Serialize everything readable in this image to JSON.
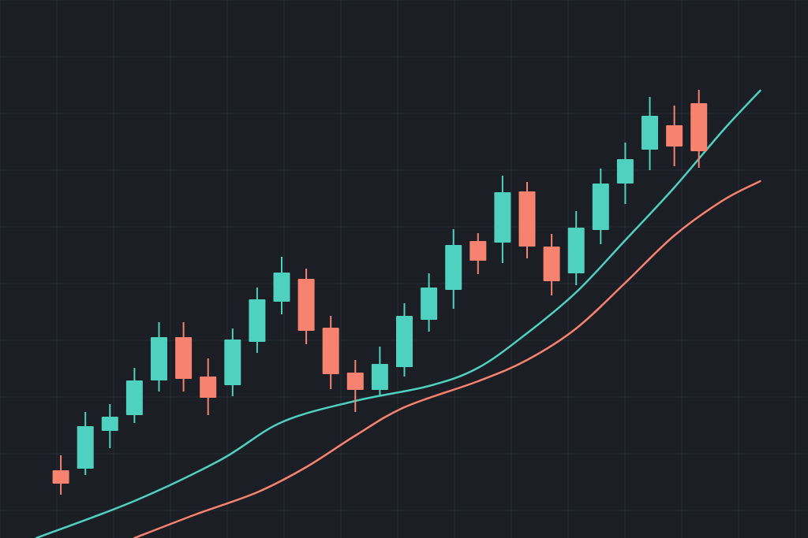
{
  "colors": {
    "background": "#1b1e25",
    "grid": "#262a33",
    "up": "#4fd1bf",
    "down": "#f6826f",
    "ma_fast": "#4fd1bf",
    "ma_slow": "#f6826f"
  },
  "chart_data": {
    "type": "candlestick",
    "title": "",
    "xlabel": "",
    "ylabel": "",
    "grid": true,
    "ylim": [
      0,
      683
    ],
    "candles": [
      {
        "x": 1,
        "open": 86,
        "close": 69,
        "high": 105,
        "low": 55
      },
      {
        "x": 2,
        "open": 88,
        "close": 142,
        "high": 160,
        "low": 80
      },
      {
        "x": 3,
        "open": 136,
        "close": 154,
        "high": 170,
        "low": 114
      },
      {
        "x": 4,
        "open": 156,
        "close": 200,
        "high": 216,
        "low": 146
      },
      {
        "x": 5,
        "open": 200,
        "close": 255,
        "high": 274,
        "low": 186
      },
      {
        "x": 6,
        "open": 255,
        "close": 202,
        "high": 274,
        "low": 186
      },
      {
        "x": 7,
        "open": 205,
        "close": 178,
        "high": 228,
        "low": 156
      },
      {
        "x": 8,
        "open": 194,
        "close": 252,
        "high": 266,
        "low": 180
      },
      {
        "x": 9,
        "open": 249,
        "close": 303,
        "high": 318,
        "low": 235
      },
      {
        "x": 10,
        "open": 300,
        "close": 337,
        "high": 357,
        "low": 284
      },
      {
        "x": 11,
        "open": 329,
        "close": 263,
        "high": 342,
        "low": 246
      },
      {
        "x": 12,
        "open": 267,
        "close": 208,
        "high": 282,
        "low": 189
      },
      {
        "x": 13,
        "open": 210,
        "close": 188,
        "high": 226,
        "low": 160
      },
      {
        "x": 14,
        "open": 188,
        "close": 221,
        "high": 243,
        "low": 180
      },
      {
        "x": 15,
        "open": 217,
        "close": 282,
        "high": 298,
        "low": 205
      },
      {
        "x": 16,
        "open": 277,
        "close": 318,
        "high": 336,
        "low": 262
      },
      {
        "x": 17,
        "open": 315,
        "close": 372,
        "high": 392,
        "low": 291
      },
      {
        "x": 18,
        "open": 377,
        "close": 352,
        "high": 387,
        "low": 335
      },
      {
        "x": 19,
        "open": 375,
        "close": 439,
        "high": 460,
        "low": 349
      },
      {
        "x": 20,
        "open": 440,
        "close": 370,
        "high": 452,
        "low": 355
      },
      {
        "x": 21,
        "open": 370,
        "close": 326,
        "high": 386,
        "low": 308
      },
      {
        "x": 22,
        "open": 336,
        "close": 394,
        "high": 415,
        "low": 321
      },
      {
        "x": 23,
        "open": 391,
        "close": 450,
        "high": 469,
        "low": 373
      },
      {
        "x": 24,
        "open": 450,
        "close": 481,
        "high": 502,
        "low": 424
      },
      {
        "x": 25,
        "open": 493,
        "close": 536,
        "high": 560,
        "low": 467
      },
      {
        "x": 26,
        "open": 524,
        "close": 497,
        "high": 549,
        "low": 472
      },
      {
        "x": 27,
        "open": 552,
        "close": 491,
        "high": 569,
        "low": 470
      }
    ],
    "series": [
      {
        "type": "line",
        "color_key": "ma_fast",
        "points": [
          [
            0,
            0
          ],
          [
            4,
            47
          ],
          [
            7.5,
            99
          ],
          [
            10,
            147
          ],
          [
            13,
            174
          ],
          [
            16,
            193
          ],
          [
            18,
            216
          ],
          [
            20,
            260
          ],
          [
            22,
            312
          ],
          [
            24,
            378
          ],
          [
            26,
            445
          ],
          [
            28,
            518
          ],
          [
            29.5,
            568
          ]
        ]
      },
      {
        "type": "line",
        "color_key": "ma_slow",
        "points": [
          [
            4,
            0
          ],
          [
            6.5,
            30
          ],
          [
            9,
            58
          ],
          [
            11,
            90
          ],
          [
            13,
            130
          ],
          [
            15,
            166
          ],
          [
            18,
            199
          ],
          [
            20,
            226
          ],
          [
            22,
            266
          ],
          [
            24,
            324
          ],
          [
            26,
            384
          ],
          [
            28,
            429
          ],
          [
            29.5,
            453
          ]
        ]
      }
    ]
  }
}
